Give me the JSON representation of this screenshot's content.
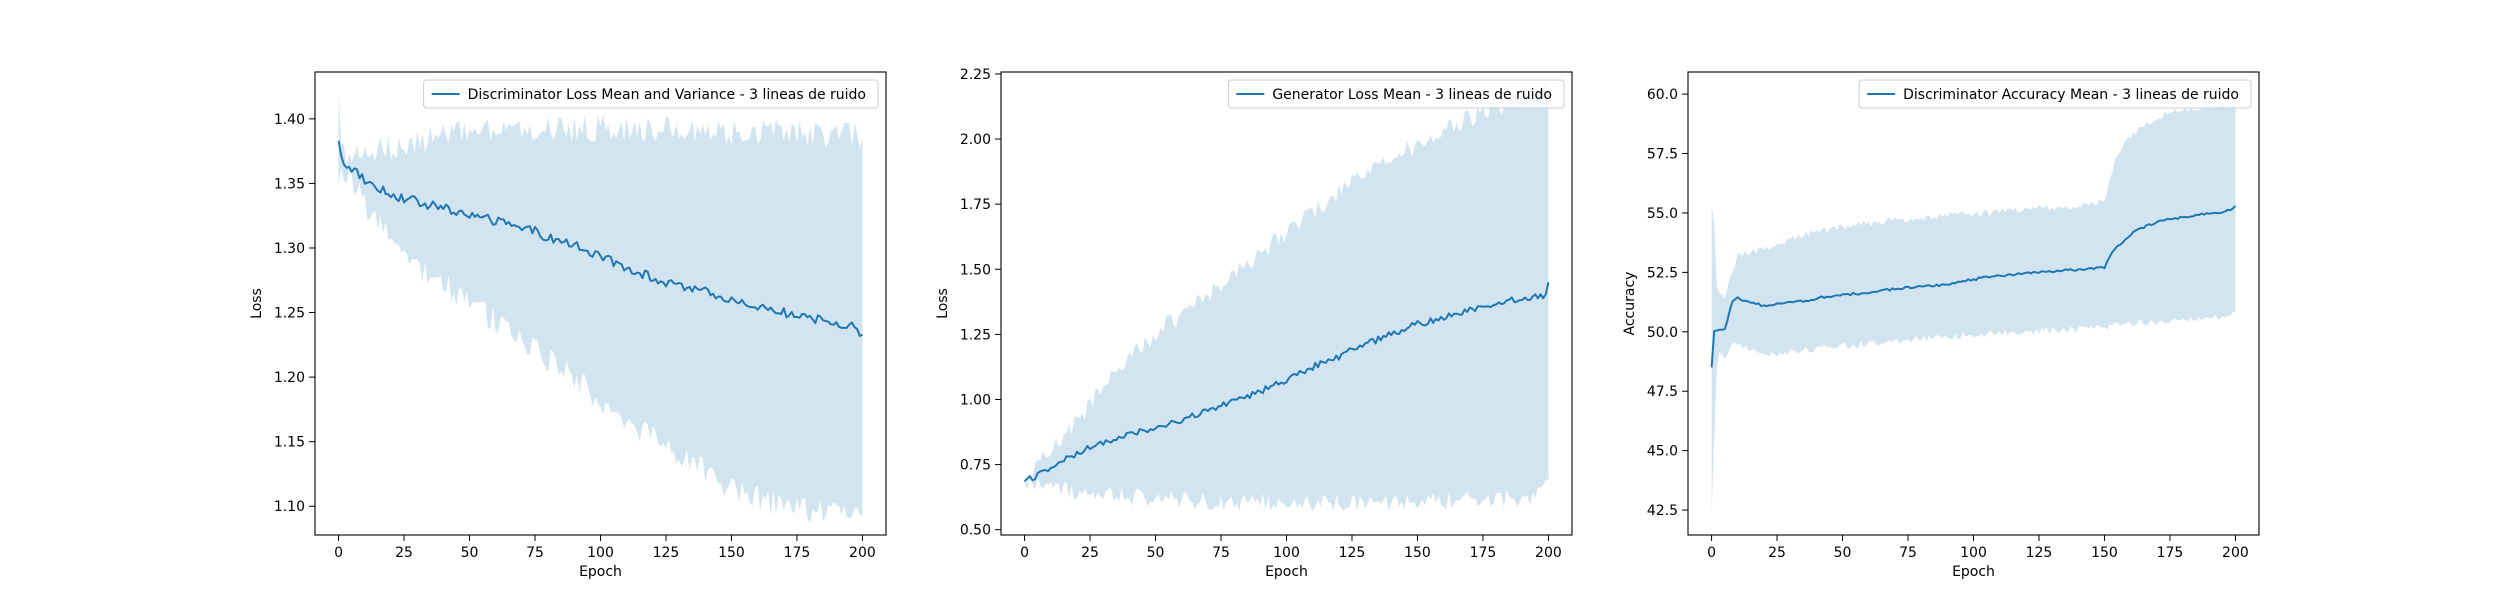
{
  "colors": {
    "line": "#1f77b4",
    "band": "#1f77b4",
    "axes": "#000000",
    "background": "#ffffff"
  },
  "chart_data": [
    {
      "type": "line",
      "series": [
        {
          "name": "Discriminator Loss Mean and Variance - 3 lineas de ruido",
          "x": [
            0,
            1,
            2,
            3,
            5,
            8,
            10,
            15,
            20,
            25,
            30,
            35,
            40,
            45,
            50,
            55,
            60,
            65,
            70,
            75,
            80,
            85,
            90,
            95,
            100,
            105,
            110,
            115,
            120,
            125,
            130,
            135,
            140,
            145,
            150,
            155,
            160,
            165,
            170,
            175,
            180,
            185,
            190,
            195,
            198,
            200
          ],
          "y": [
            1.383,
            1.37,
            1.366,
            1.364,
            1.362,
            1.357,
            1.352,
            1.347,
            1.342,
            1.338,
            1.336,
            1.333,
            1.331,
            1.328,
            1.326,
            1.323,
            1.321,
            1.318,
            1.315,
            1.313,
            1.308,
            1.305,
            1.302,
            1.298,
            1.293,
            1.289,
            1.285,
            1.281,
            1.277,
            1.273,
            1.27,
            1.268,
            1.266,
            1.262,
            1.26,
            1.258,
            1.255,
            1.252,
            1.25,
            1.248,
            1.245,
            1.244,
            1.242,
            1.24,
            1.237,
            1.233
          ],
          "band_upper": [
            1.42,
            1.385,
            1.375,
            1.37,
            1.368,
            1.37,
            1.372,
            1.375,
            1.378,
            1.38,
            1.383,
            1.385,
            1.387,
            1.388,
            1.389,
            1.39,
            1.39,
            1.391,
            1.392,
            1.392,
            1.392,
            1.392,
            1.393,
            1.393,
            1.393,
            1.393,
            1.393,
            1.392,
            1.392,
            1.392,
            1.392,
            1.391,
            1.391,
            1.391,
            1.39,
            1.39,
            1.39,
            1.39,
            1.389,
            1.389,
            1.389,
            1.388,
            1.388,
            1.388,
            1.387,
            1.385
          ],
          "band_lower": [
            1.348,
            1.357,
            1.357,
            1.355,
            1.352,
            1.345,
            1.333,
            1.318,
            1.305,
            1.295,
            1.287,
            1.28,
            1.273,
            1.265,
            1.258,
            1.25,
            1.244,
            1.237,
            1.23,
            1.222,
            1.214,
            1.206,
            1.198,
            1.19,
            1.182,
            1.174,
            1.168,
            1.16,
            1.152,
            1.144,
            1.138,
            1.132,
            1.126,
            1.12,
            1.115,
            1.11,
            1.106,
            1.103,
            1.1,
            1.098,
            1.097,
            1.096,
            1.095,
            1.094,
            1.093,
            1.092
          ]
        }
      ],
      "title": "",
      "xlabel": "Epoch",
      "ylabel": "Loss",
      "xlim": [
        -9,
        209
      ],
      "ylim": [
        1.0777,
        1.4363
      ],
      "xticks": [
        0,
        25,
        50,
        75,
        100,
        125,
        150,
        175,
        200
      ],
      "xtick_labels": [
        "0",
        "25",
        "50",
        "75",
        "100",
        "125",
        "150",
        "175",
        "200"
      ],
      "yticks": [
        1.1,
        1.15,
        1.2,
        1.25,
        1.3,
        1.35,
        1.4
      ],
      "ytick_labels": [
        "1.10",
        "1.15",
        "1.20",
        "1.25",
        "1.30",
        "1.35",
        "1.40"
      ],
      "grid": false,
      "legend_position": "upper right",
      "noise_amplitude": 0.0035
    },
    {
      "type": "line",
      "series": [
        {
          "name": "Generator Loss Mean - 3 lineas de ruido",
          "x": [
            0,
            5,
            10,
            15,
            20,
            25,
            30,
            35,
            40,
            45,
            50,
            55,
            60,
            65,
            70,
            75,
            80,
            85,
            90,
            95,
            100,
            105,
            110,
            115,
            120,
            125,
            130,
            135,
            140,
            145,
            150,
            155,
            160,
            165,
            170,
            175,
            180,
            185,
            190,
            195,
            199,
            200
          ],
          "y": [
            0.685,
            0.71,
            0.735,
            0.765,
            0.79,
            0.815,
            0.835,
            0.85,
            0.865,
            0.88,
            0.89,
            0.905,
            0.92,
            0.94,
            0.96,
            0.975,
            0.99,
            1.01,
            1.03,
            1.055,
            1.075,
            1.1,
            1.125,
            1.145,
            1.165,
            1.19,
            1.215,
            1.23,
            1.25,
            1.27,
            1.29,
            1.3,
            1.315,
            1.33,
            1.345,
            1.36,
            1.37,
            1.38,
            1.385,
            1.395,
            1.4,
            1.45
          ],
          "band_upper": [
            0.7,
            0.75,
            0.8,
            0.86,
            0.92,
            0.98,
            1.04,
            1.1,
            1.16,
            1.2,
            1.25,
            1.29,
            1.33,
            1.36,
            1.4,
            1.44,
            1.48,
            1.52,
            1.56,
            1.6,
            1.64,
            1.68,
            1.72,
            1.76,
            1.79,
            1.83,
            1.86,
            1.89,
            1.92,
            1.95,
            1.98,
            2.0,
            2.03,
            2.06,
            2.08,
            2.1,
            2.12,
            2.14,
            2.15,
            2.17,
            2.18,
            2.2
          ],
          "band_lower": [
            0.68,
            0.67,
            0.66,
            0.65,
            0.645,
            0.64,
            0.635,
            0.63,
            0.625,
            0.62,
            0.62,
            0.615,
            0.615,
            0.61,
            0.61,
            0.61,
            0.608,
            0.607,
            0.606,
            0.605,
            0.605,
            0.605,
            0.605,
            0.605,
            0.605,
            0.605,
            0.605,
            0.605,
            0.605,
            0.606,
            0.606,
            0.607,
            0.608,
            0.61,
            0.612,
            0.614,
            0.617,
            0.62,
            0.623,
            0.626,
            0.68,
            0.69
          ]
        }
      ],
      "title": "",
      "xlabel": "Epoch",
      "ylabel": "Loss",
      "xlim": [
        -9,
        209
      ],
      "ylim": [
        0.4796,
        2.2575
      ],
      "xticks": [
        0,
        25,
        50,
        75,
        100,
        125,
        150,
        175,
        200
      ],
      "xtick_labels": [
        "0",
        "25",
        "50",
        "75",
        "100",
        "125",
        "150",
        "175",
        "200"
      ],
      "yticks": [
        0.5,
        0.75,
        1.0,
        1.25,
        1.5,
        1.75,
        2.0,
        2.25
      ],
      "ytick_labels": [
        "0.50",
        "0.75",
        "1.00",
        "1.25",
        "1.50",
        "1.75",
        "2.00",
        "2.25"
      ],
      "grid": false,
      "legend_position": "upper right",
      "noise_amplitude": 0.012
    },
    {
      "type": "line",
      "series": [
        {
          "name": "Discriminator Accuracy Mean - 3 lineas de ruido",
          "x": [
            0,
            1,
            2,
            3,
            5,
            8,
            10,
            15,
            20,
            25,
            30,
            35,
            40,
            45,
            50,
            55,
            60,
            65,
            70,
            75,
            80,
            85,
            90,
            95,
            100,
            105,
            110,
            115,
            120,
            125,
            130,
            135,
            140,
            145,
            150,
            152,
            155,
            160,
            165,
            170,
            175,
            180,
            185,
            190,
            195,
            198,
            200
          ],
          "y": [
            48.5,
            50.0,
            50.05,
            50.05,
            50.1,
            51.3,
            51.4,
            51.2,
            51.1,
            51.2,
            51.25,
            51.3,
            51.4,
            51.5,
            51.55,
            51.6,
            51.65,
            51.75,
            51.8,
            51.85,
            51.9,
            51.95,
            52.0,
            52.1,
            52.2,
            52.3,
            52.35,
            52.4,
            52.45,
            52.5,
            52.55,
            52.6,
            52.6,
            52.65,
            52.7,
            53.2,
            53.6,
            54.1,
            54.4,
            54.6,
            54.75,
            54.8,
            54.9,
            55.0,
            55.05,
            55.1,
            55.3
          ],
          "band_upper": [
            55.3,
            54.5,
            52.0,
            51.5,
            51.5,
            52.5,
            53.2,
            53.3,
            53.5,
            53.7,
            53.9,
            54.05,
            54.2,
            54.3,
            54.4,
            54.5,
            54.55,
            54.6,
            54.7,
            54.75,
            54.8,
            54.85,
            54.9,
            54.95,
            55.0,
            55.0,
            55.05,
            55.1,
            55.15,
            55.2,
            55.2,
            55.25,
            55.3,
            55.35,
            55.5,
            56.5,
            57.5,
            58.2,
            58.7,
            59.0,
            59.2,
            59.3,
            59.4,
            59.5,
            59.5,
            59.5,
            59.5
          ],
          "band_lower": [
            42.3,
            45.5,
            48.5,
            49.0,
            49.0,
            49.5,
            49.4,
            49.2,
            49.0,
            49.1,
            49.15,
            49.2,
            49.3,
            49.35,
            49.4,
            49.45,
            49.5,
            49.55,
            49.6,
            49.65,
            49.7,
            49.75,
            49.8,
            49.85,
            49.85,
            49.9,
            49.95,
            50.0,
            50.0,
            50.05,
            50.05,
            50.1,
            50.1,
            50.15,
            50.2,
            50.25,
            50.3,
            50.35,
            50.4,
            50.45,
            50.5,
            50.55,
            50.6,
            50.6,
            50.65,
            50.7,
            50.8
          ]
        }
      ],
      "title": "",
      "xlabel": "Epoch",
      "ylabel": "Accuracy",
      "xlim": [
        -9,
        209
      ],
      "ylim": [
        41.45,
        60.93
      ],
      "xticks": [
        0,
        25,
        50,
        75,
        100,
        125,
        150,
        175,
        200
      ],
      "xtick_labels": [
        "0",
        "25",
        "50",
        "75",
        "100",
        "125",
        "150",
        "175",
        "200"
      ],
      "yticks": [
        42.5,
        45.0,
        47.5,
        50.0,
        52.5,
        55.0,
        57.5,
        60.0
      ],
      "ytick_labels": [
        "42.5",
        "45.0",
        "47.5",
        "50.0",
        "52.5",
        "55.0",
        "57.5",
        "60.0"
      ],
      "grid": false,
      "legend_position": "upper right",
      "noise_amplitude": 0.05
    }
  ]
}
